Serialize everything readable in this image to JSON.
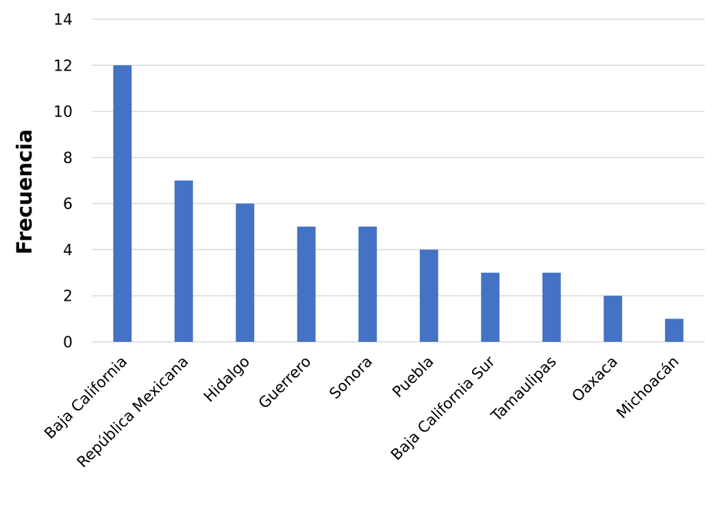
{
  "chart_data": {
    "type": "bar",
    "y_label": "Frecuencia",
    "categories": [
      "Baja California",
      "República Mexicana",
      "Hidalgo",
      "Guerrero",
      "Sonora",
      "Puebla",
      "Baja California Sur",
      "Tamaulipas",
      "Oaxaca",
      "Michoacán"
    ],
    "values": [
      12,
      7,
      6,
      5,
      5,
      4,
      3,
      3,
      2,
      1
    ],
    "color": "#4472c4",
    "ylim": [
      0,
      14
    ],
    "yticks": [
      0,
      2,
      4,
      6,
      8,
      10,
      12,
      14
    ],
    "grid": true
  }
}
